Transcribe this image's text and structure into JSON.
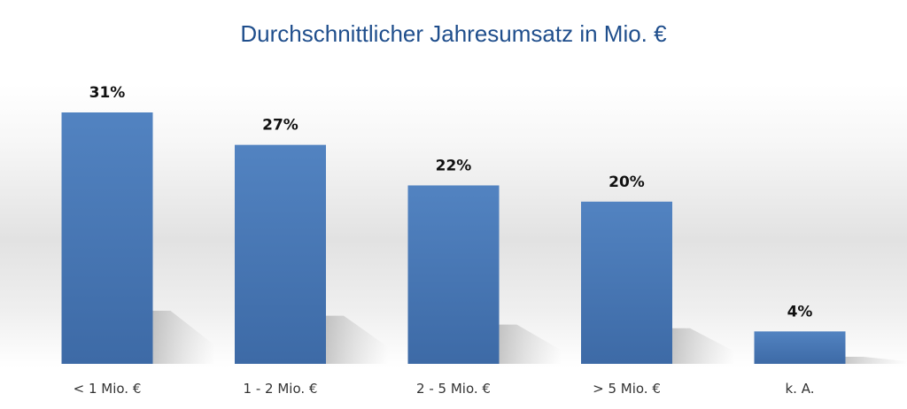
{
  "chart_data": {
    "type": "bar",
    "title": "Durchschnittlicher Jahresumsatz in Mio. €",
    "categories": [
      "< 1 Mio. €",
      "1 - 2 Mio. €",
      "2 - 5 Mio. €",
      "> 5 Mio. €",
      "k. A."
    ],
    "values": [
      31,
      27,
      22,
      20,
      4
    ],
    "value_labels": [
      "31%",
      "27%",
      "22%",
      "20%",
      "4%"
    ],
    "unit": "%",
    "ylim": [
      0,
      31
    ],
    "grid": false,
    "legend": "none",
    "colors": {
      "bar_top": "#5283c1",
      "bar_bottom": "#3d6aa6",
      "title": "#1f4e8c"
    }
  }
}
